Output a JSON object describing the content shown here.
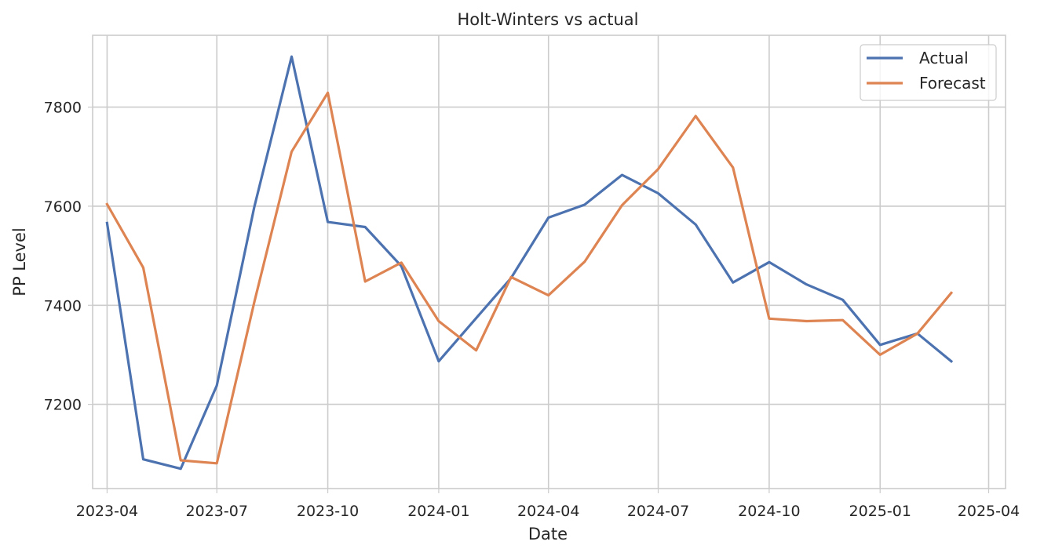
{
  "chart_data": {
    "type": "line",
    "title": "Holt-Winters vs actual",
    "xlabel": "Date",
    "ylabel": "PP Level",
    "x": [
      "2023-04",
      "2023-05",
      "2023-06",
      "2023-07",
      "2023-08",
      "2023-09",
      "2023-10",
      "2023-11",
      "2023-12",
      "2024-01",
      "2024-02",
      "2024-03",
      "2024-04",
      "2024-05",
      "2024-06",
      "2024-07",
      "2024-08",
      "2024-09",
      "2024-10",
      "2024-11",
      "2024-12",
      "2025-01",
      "2025-02",
      "2025-03"
    ],
    "x_ticks": [
      "2023-04",
      "2023-07",
      "2023-10",
      "2024-01",
      "2024-04",
      "2024-07",
      "2024-10",
      "2025-01",
      "2025-04"
    ],
    "y_ticks": [
      7200,
      7400,
      7600,
      7800
    ],
    "xlim": [
      "2023-03-20",
      "2025-04-15"
    ],
    "ylim": [
      7030,
      7945
    ],
    "grid": true,
    "legend_position": "top-right",
    "series": [
      {
        "name": "Actual",
        "color": "#4c72b0",
        "values": [
          7566,
          7089,
          7070,
          7238,
          7598,
          7902,
          7568,
          7558,
          7479,
          7287,
          7374,
          7455,
          7577,
          7603,
          7663,
          7626,
          7563,
          7446,
          7487,
          7442,
          7411,
          7320,
          7343,
          7287
        ]
      },
      {
        "name": "Forecast",
        "color": "#dd8452",
        "values": [
          7604,
          7476,
          7087,
          7081,
          7406,
          7710,
          7829,
          7448,
          7486,
          7368,
          7309,
          7457,
          7420,
          7488,
          7602,
          7675,
          7782,
          7678,
          7373,
          7368,
          7370,
          7300,
          7343,
          7425
        ]
      }
    ]
  }
}
